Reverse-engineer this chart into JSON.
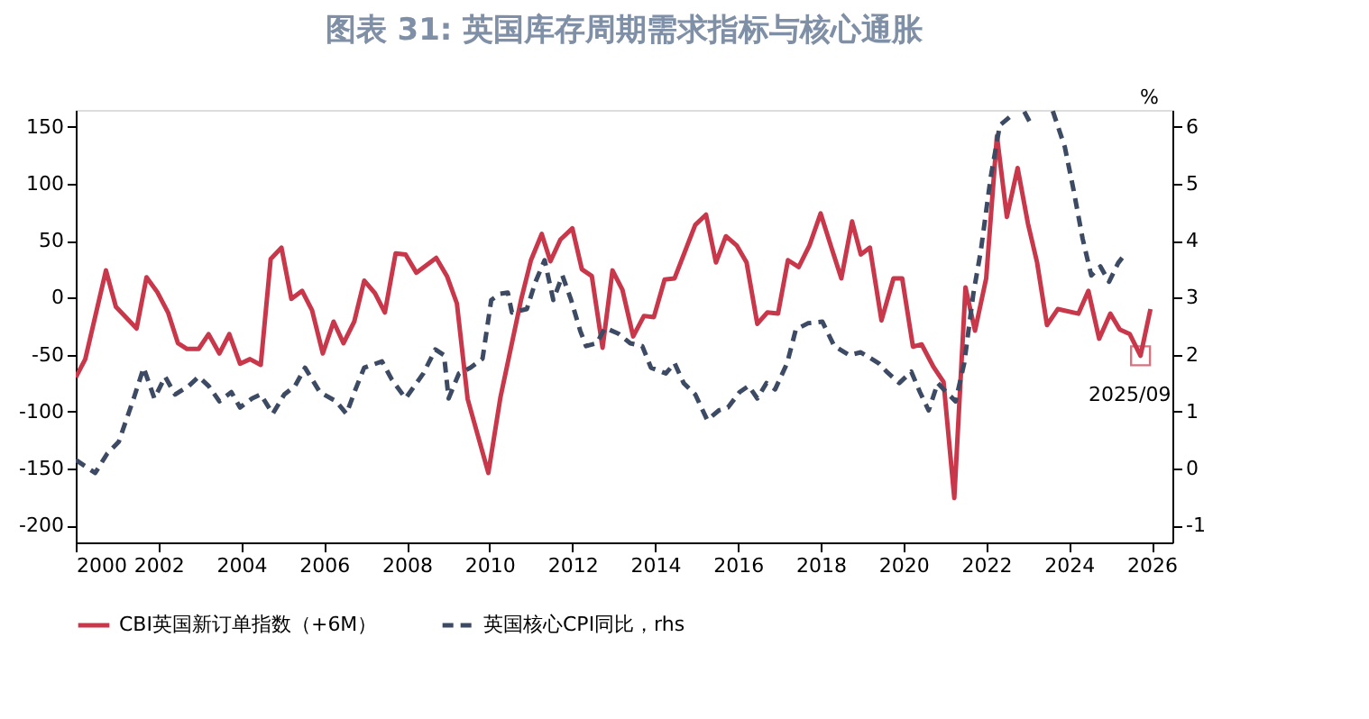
{
  "chart_data": {
    "type": "line",
    "title": "图表 31: 英国库存周期需求指标与核心通胀",
    "y2label": "%",
    "xlim": [
      2000,
      2026.5
    ],
    "xticks": [
      2000,
      2002,
      2004,
      2006,
      2008,
      2010,
      2012,
      2014,
      2016,
      2018,
      2020,
      2022,
      2024,
      2026
    ],
    "ylim": [
      -215,
      165
    ],
    "yticks": [
      -200,
      -150,
      -100,
      -50,
      0,
      50,
      100,
      150
    ],
    "y2lim": [
      -1.3,
      6.3
    ],
    "y2ticks": [
      -1,
      0,
      1,
      2,
      3,
      4,
      5,
      6
    ],
    "grid": false,
    "legend": "bottom",
    "marker": "none",
    "annotations": [
      {
        "text": "2025/09",
        "x": 2025.73,
        "y": -51
      }
    ],
    "series": [
      {
        "name": "CBI英国新订单指数（+6M）",
        "color": "#c8374a",
        "line_style": "solid",
        "x": [
          2000.0,
          2000.23,
          2000.73,
          2000.97,
          2001.47,
          2001.71,
          2001.97,
          2002.23,
          2002.47,
          2002.69,
          2002.97,
          2003.21,
          2003.47,
          2003.71,
          2003.97,
          2004.21,
          2004.47,
          2004.71,
          2004.97,
          2005.21,
          2005.47,
          2005.71,
          2005.97,
          2006.23,
          2006.47,
          2006.73,
          2006.97,
          2007.23,
          2007.47,
          2007.73,
          2007.97,
          2008.23,
          2008.71,
          2008.97,
          2009.21,
          2009.47,
          2009.97,
          2010.26,
          2010.76,
          2011.0,
          2011.26,
          2011.47,
          2011.71,
          2012.0,
          2012.23,
          2012.47,
          2012.73,
          2012.97,
          2013.21,
          2013.47,
          2013.73,
          2013.97,
          2014.23,
          2014.47,
          2014.97,
          2015.23,
          2015.47,
          2015.71,
          2015.97,
          2016.21,
          2016.47,
          2016.71,
          2016.97,
          2017.21,
          2017.47,
          2017.73,
          2018.0,
          2018.26,
          2018.5,
          2018.76,
          2018.97,
          2019.19,
          2019.47,
          2019.76,
          2019.97,
          2020.23,
          2020.44,
          2020.73,
          2020.97,
          2021.23,
          2021.5,
          2021.73,
          2022.0,
          2022.26,
          2022.5,
          2022.76,
          2023.01,
          2023.23,
          2023.47,
          2023.73,
          2024.23,
          2024.47,
          2024.73,
          2025.0,
          2025.23,
          2025.47,
          2025.73,
          2025.97
        ],
        "values": [
          -70,
          -54,
          24,
          -8,
          -27,
          18,
          5,
          -13,
          -40,
          -45,
          -45,
          -32,
          -49,
          -32,
          -58,
          -54,
          -59,
          34,
          44,
          -1,
          6,
          -11,
          -49,
          -21,
          -40,
          -21,
          15,
          4,
          -13,
          39,
          38,
          22,
          35,
          19,
          -5,
          -89,
          -154,
          -88,
          -2,
          33,
          56,
          32,
          51,
          61,
          25,
          19,
          -44,
          24,
          7,
          -34,
          -16,
          -17,
          16,
          17,
          64,
          73,
          31,
          54,
          46,
          31,
          -23,
          -13,
          -14,
          33,
          27,
          46,
          74,
          44,
          17,
          67,
          38,
          44,
          -20,
          17,
          17,
          -43,
          -41,
          -61,
          -74,
          -176,
          9,
          -29,
          17,
          142,
          71,
          114,
          65,
          31,
          -24,
          -10,
          -14,
          6,
          -36,
          -14,
          -28,
          -32,
          -51,
          -10
        ]
      },
      {
        "name": "英国核心CPI同比，rhs",
        "color": "#3d4a63",
        "line_style": "dashed",
        "axis": "y2",
        "x": [
          2000.0,
          2000.47,
          2000.76,
          2001.04,
          2001.4,
          2001.64,
          2001.9,
          2002.16,
          2002.4,
          2002.73,
          2002.97,
          2003.21,
          2003.47,
          2003.76,
          2003.97,
          2004.26,
          2004.47,
          2004.76,
          2005.04,
          2005.3,
          2005.54,
          2005.9,
          2006.29,
          2006.54,
          2006.76,
          2006.97,
          2007.4,
          2007.64,
          2007.97,
          2008.4,
          2008.69,
          2008.9,
          2009.01,
          2009.26,
          2009.54,
          2009.83,
          2010.04,
          2010.26,
          2010.44,
          2010.54,
          2010.9,
          2011.11,
          2011.33,
          2011.54,
          2011.76,
          2011.97,
          2012.19,
          2012.33,
          2012.59,
          2012.79,
          2013.11,
          2013.4,
          2013.69,
          2013.9,
          2014.26,
          2014.47,
          2014.69,
          2014.97,
          2015.26,
          2015.54,
          2015.76,
          2016.04,
          2016.26,
          2016.47,
          2016.69,
          2016.9,
          2017.19,
          2017.4,
          2017.69,
          2018.04,
          2018.33,
          2018.69,
          2018.97,
          2019.4,
          2019.61,
          2019.9,
          2020.19,
          2020.4,
          2020.61,
          2020.83,
          2021.04,
          2021.26,
          2021.47,
          2021.69,
          2021.87,
          2022.11,
          2022.33,
          2022.61,
          2022.8,
          2022.92,
          2023.12,
          2023.3,
          2023.61,
          2023.9,
          2024.11,
          2024.33,
          2024.54,
          2024.76,
          2024.97,
          2025.19,
          2025.36
        ],
        "values": [
          0.15,
          -0.08,
          0.26,
          0.47,
          1.23,
          1.77,
          1.23,
          1.61,
          1.3,
          1.45,
          1.61,
          1.45,
          1.18,
          1.34,
          1.07,
          1.23,
          1.3,
          0.96,
          1.3,
          1.45,
          1.77,
          1.34,
          1.18,
          0.96,
          1.39,
          1.77,
          1.88,
          1.56,
          1.23,
          1.67,
          2.09,
          1.99,
          1.23,
          1.67,
          1.77,
          1.93,
          2.96,
          3.07,
          3.09,
          2.74,
          2.8,
          3.28,
          3.66,
          2.96,
          3.39,
          2.96,
          2.42,
          2.15,
          2.2,
          2.47,
          2.37,
          2.2,
          2.15,
          1.77,
          1.67,
          1.85,
          1.5,
          1.3,
          0.85,
          1.02,
          1.07,
          1.34,
          1.45,
          1.23,
          1.5,
          1.39,
          1.85,
          2.44,
          2.55,
          2.58,
          2.15,
          1.99,
          2.04,
          1.85,
          1.69,
          1.5,
          1.7,
          1.34,
          1.02,
          1.5,
          1.34,
          1.18,
          1.85,
          3.07,
          3.82,
          5.12,
          6.03,
          6.2,
          null,
          6.27,
          6.0,
          null,
          6.28,
          5.65,
          4.9,
          4.04,
          3.39,
          3.55,
          3.28,
          3.61,
          3.77
        ]
      }
    ]
  }
}
